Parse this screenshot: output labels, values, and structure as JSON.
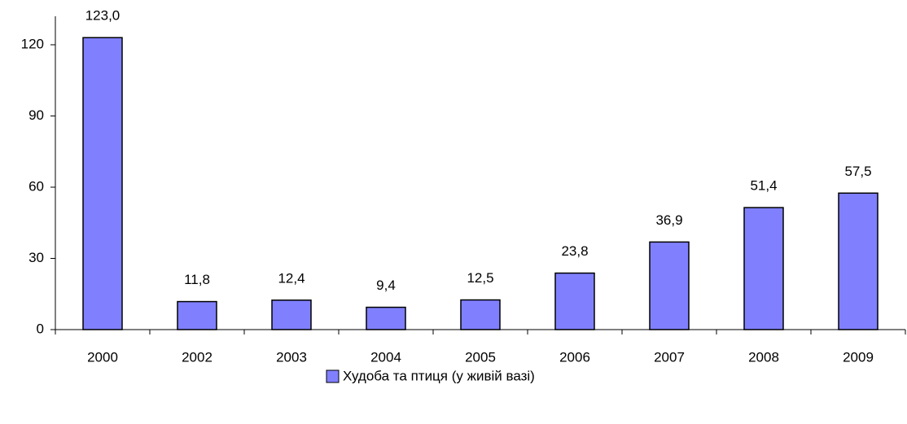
{
  "chart_data": {
    "type": "bar",
    "categories": [
      "2000",
      "2002",
      "2003",
      "2004",
      "2005",
      "2006",
      "2007",
      "2008",
      "2009"
    ],
    "series": [
      {
        "name": "Худоба та птиця (у живій вазі)",
        "color": "#8080ff",
        "values": [
          123.0,
          11.8,
          12.4,
          9.4,
          12.5,
          23.8,
          36.9,
          51.4,
          57.5
        ],
        "value_labels": [
          "123,0",
          "11,8",
          "12,4",
          "9,4",
          "12,5",
          "23,8",
          "36,9",
          "51,4",
          "57,5"
        ]
      }
    ],
    "ylim": [
      0,
      132
    ],
    "yticks": [
      0,
      30,
      60,
      90,
      120
    ],
    "grid": false,
    "legend": "bottom"
  }
}
